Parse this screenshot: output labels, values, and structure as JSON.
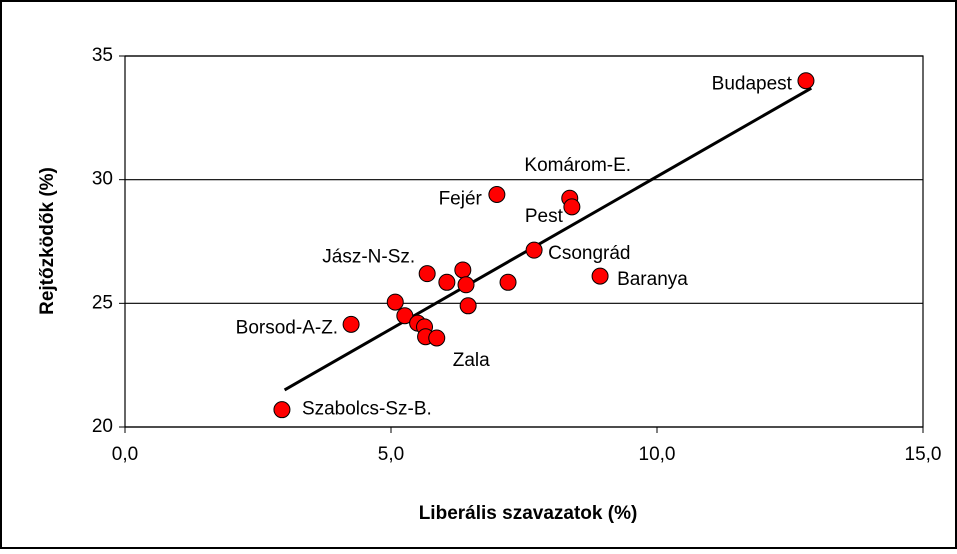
{
  "chart_data": {
    "type": "scatter",
    "x_label": "Liberális szavazatok (%)",
    "y_label": "Rejtőzködők (%)",
    "xlim": [
      0,
      15
    ],
    "ylim": [
      20,
      35
    ],
    "xticks": [
      {
        "value": 0,
        "label": "0,0"
      },
      {
        "value": 5,
        "label": "5,0"
      },
      {
        "value": 10,
        "label": "10,0"
      },
      {
        "value": 15,
        "label": "15,0"
      }
    ],
    "yticks": [
      20,
      25,
      30,
      35
    ],
    "grid": true,
    "color": "#ff0000",
    "series": [
      {
        "x": [
          12.8,
          8.36,
          8.4,
          6.99,
          7.69,
          8.93,
          5.68,
          6.35,
          6.41,
          6.05,
          7.2,
          6.45,
          5.08,
          5.26,
          5.5,
          5.63,
          5.65,
          5.86,
          4.25,
          2.95
        ],
        "values": [
          34.0,
          29.25,
          28.9,
          29.4,
          27.15,
          26.1,
          26.2,
          26.35,
          25.75,
          25.85,
          25.85,
          24.9,
          25.05,
          24.5,
          24.2,
          24.05,
          23.65,
          23.6,
          24.15,
          20.7
        ],
        "labels": [
          "Budapest",
          "Komárom-E.",
          "Pest",
          "Fejér",
          "Csongrád",
          "Baranya",
          "Jász-N-Sz.",
          null,
          null,
          null,
          null,
          null,
          null,
          null,
          null,
          null,
          null,
          "Zala",
          "Borsod-A-Z.",
          "Szabolcs-Sz-B."
        ]
      }
    ],
    "trendline": {
      "x": [
        3.0,
        12.9
      ],
      "values": [
        21.5,
        33.7
      ],
      "color": "#000000"
    }
  }
}
